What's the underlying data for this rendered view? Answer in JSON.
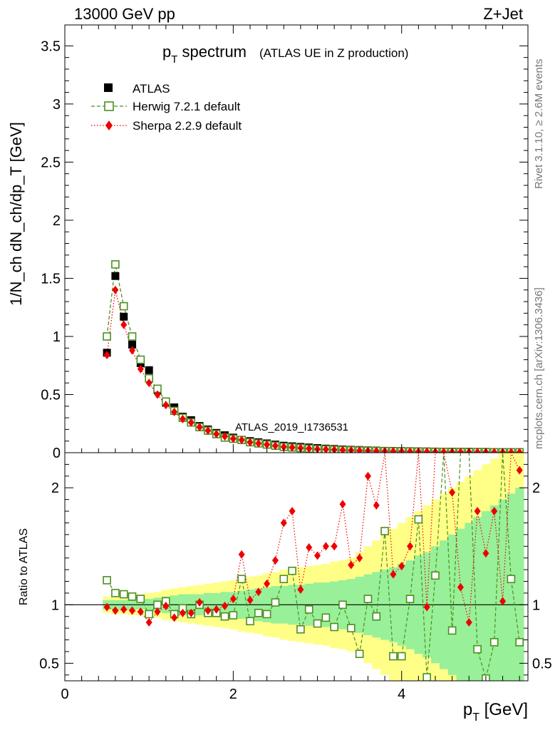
{
  "header": {
    "left": "13000 GeV pp",
    "right": "Z+Jet"
  },
  "side_labels": {
    "rivet": "Rivet 3.1.10, ≥ 2.6M events",
    "mcplots": "mcplots.cern.ch [arXiv:1306.3436]"
  },
  "colors": {
    "atlas": "#000000",
    "herwig": "#4c8f1f",
    "sherpa": "#ee0000",
    "band_inner": "#98f098",
    "band_outer": "#ffff88"
  },
  "chart_data": [
    {
      "type": "scatter",
      "title_main": "p",
      "title_sub": "T",
      "title_rest": " spectrum",
      "title_note": "(ATLAS UE in Z production)",
      "ylabel": "1/N_ch dN_ch/dp_T [GeV]",
      "watermark": "ATLAS_2019_I1736531",
      "ylim": [
        0,
        3.68
      ],
      "yticks": [
        "0",
        "0.5",
        "1",
        "1.5",
        "2",
        "2.5",
        "3",
        "3.5"
      ],
      "ytick_values": [
        0,
        0.5,
        1,
        1.5,
        2,
        2.5,
        3,
        3.5
      ],
      "x": [
        0.5,
        0.6,
        0.7,
        0.8,
        0.9,
        1.0,
        1.1,
        1.2,
        1.3,
        1.4,
        1.5,
        1.6,
        1.7,
        1.8,
        1.9,
        2.0,
        2.1,
        2.2,
        2.3,
        2.4,
        2.5,
        2.6,
        2.7,
        2.8,
        2.9,
        3.0,
        3.1,
        3.2,
        3.3,
        3.4,
        3.5,
        3.6,
        3.7,
        3.8,
        3.9,
        4.0,
        4.1,
        4.2,
        4.3,
        4.4,
        4.5,
        4.6,
        4.7,
        4.8,
        4.9,
        5.0,
        5.1,
        5.2,
        5.3,
        5.4
      ],
      "series": [
        {
          "name": "ATLAS",
          "marker": "square-filled",
          "values": [
            0.86,
            1.52,
            1.17,
            0.93,
            0.77,
            0.71,
            0.54,
            0.43,
            0.39,
            0.31,
            0.28,
            0.23,
            0.2,
            0.17,
            0.15,
            0.13,
            0.11,
            0.1,
            0.09,
            0.08,
            0.07,
            0.06,
            0.055,
            0.05,
            0.045,
            0.04,
            0.035,
            0.032,
            0.028,
            0.025,
            0.023,
            0.02,
            0.018,
            0.016,
            0.015,
            0.014,
            0.013,
            0.012,
            0.011,
            0.01,
            0.009,
            0.009,
            0.008,
            0.008,
            0.007,
            0.007,
            0.006,
            0.006,
            0.006,
            0.005
          ]
        },
        {
          "name": "Herwig 7.2.1 default",
          "marker": "square-open",
          "line": "dashed",
          "values": [
            1.0,
            1.62,
            1.26,
            1.0,
            0.8,
            0.64,
            0.55,
            0.44,
            0.36,
            0.3,
            0.26,
            0.22,
            0.19,
            0.16,
            0.13,
            0.12,
            0.11,
            0.09,
            0.08,
            0.07,
            0.06,
            0.05,
            0.045,
            0.04,
            0.035,
            0.03,
            0.028,
            0.025,
            0.022,
            0.02,
            0.018,
            0.016,
            0.014,
            0.013,
            0.012,
            0.011,
            0.01,
            0.009,
            0.008,
            0.007,
            0.007,
            0.006,
            0.006,
            0.005,
            0.005,
            0.005,
            0.004,
            0.004,
            0.004,
            0.004
          ]
        },
        {
          "name": "Sherpa 2.2.9 default",
          "marker": "diamond-filled",
          "line": "dotted",
          "values": [
            0.84,
            1.4,
            1.1,
            0.88,
            0.72,
            0.6,
            0.5,
            0.41,
            0.35,
            0.29,
            0.26,
            0.22,
            0.19,
            0.16,
            0.14,
            0.12,
            0.11,
            0.09,
            0.08,
            0.07,
            0.06,
            0.05,
            0.045,
            0.04,
            0.035,
            0.03,
            0.028,
            0.025,
            0.022,
            0.02,
            0.018,
            0.016,
            0.014,
            0.013,
            0.012,
            0.011,
            0.01,
            0.009,
            0.008,
            0.007,
            0.007,
            0.006,
            0.006,
            0.005,
            0.005,
            0.005,
            0.004,
            0.004,
            0.004,
            0.004
          ]
        }
      ],
      "legend_position": "top-left"
    },
    {
      "type": "scatter",
      "ylabel": "Ratio to ATLAS",
      "xlabel_main": "p",
      "xlabel_sub": "T",
      "xlabel_rest": " [GeV]",
      "xlim": [
        0,
        5.5
      ],
      "xticks": [
        "0",
        "2",
        "4"
      ],
      "xtick_values": [
        0,
        2,
        4
      ],
      "ylim": [
        0.35,
        2.3
      ],
      "yticks_left": [
        "0.5",
        "1",
        "2"
      ],
      "yticks_right": [
        "0.5",
        "1",
        "2"
      ],
      "ytick_values": [
        0.5,
        1,
        2
      ],
      "x": [
        0.5,
        0.6,
        0.7,
        0.8,
        0.9,
        1.0,
        1.1,
        1.2,
        1.3,
        1.4,
        1.5,
        1.6,
        1.7,
        1.8,
        1.9,
        2.0,
        2.1,
        2.2,
        2.3,
        2.4,
        2.5,
        2.6,
        2.7,
        2.8,
        2.9,
        3.0,
        3.1,
        3.2,
        3.3,
        3.4,
        3.5,
        3.6,
        3.7,
        3.8,
        3.9,
        4.0,
        4.1,
        4.2,
        4.3,
        4.4,
        4.5,
        4.6,
        4.7,
        4.8,
        4.9,
        5.0,
        5.1,
        5.2,
        5.3,
        5.4
      ],
      "band_inner_halfwidth": [
        0.04,
        0.04,
        0.04,
        0.04,
        0.04,
        0.05,
        0.06,
        0.07,
        0.08,
        0.09,
        0.09,
        0.09,
        0.1,
        0.1,
        0.11,
        0.11,
        0.12,
        0.13,
        0.14,
        0.15,
        0.16,
        0.16,
        0.17,
        0.17,
        0.18,
        0.19,
        0.19,
        0.2,
        0.21,
        0.22,
        0.24,
        0.26,
        0.28,
        0.3,
        0.32,
        0.35,
        0.38,
        0.42,
        0.45,
        0.5,
        0.55,
        0.6,
        0.65,
        0.7,
        0.75,
        0.8,
        0.85,
        0.9,
        0.95,
        1.0
      ],
      "band_outer_halfwidth": [
        0.07,
        0.08,
        0.08,
        0.09,
        0.09,
        0.1,
        0.11,
        0.13,
        0.14,
        0.15,
        0.16,
        0.17,
        0.18,
        0.19,
        0.2,
        0.21,
        0.23,
        0.24,
        0.25,
        0.27,
        0.28,
        0.3,
        0.31,
        0.32,
        0.33,
        0.34,
        0.35,
        0.37,
        0.38,
        0.4,
        0.45,
        0.5,
        0.55,
        0.6,
        0.65,
        0.7,
        0.75,
        0.8,
        0.85,
        0.9,
        0.95,
        1.0,
        1.05,
        1.1,
        1.15,
        1.2,
        1.25,
        1.3,
        1.35,
        1.4
      ],
      "series": [
        {
          "name": "Herwig 7.2.1 default",
          "values": [
            1.21,
            1.1,
            1.09,
            1.07,
            1.05,
            0.92,
            1.0,
            1.03,
            0.92,
            0.97,
            0.92,
            1.0,
            0.93,
            0.93,
            0.9,
            0.91,
            1.22,
            0.86,
            0.93,
            0.92,
            1.02,
            1.22,
            1.29,
            0.79,
            0.96,
            0.84,
            0.89,
            0.81,
            1.0,
            0.8,
            0.58,
            1.05,
            0.9,
            1.63,
            0.56,
            0.56,
            1.05,
            1.73,
            0.38,
            1.25,
            2.3,
            0.78,
            2.3,
            2.3,
            0.62,
            0.37,
            0.68,
            2.3,
            1.22,
            0.68
          ]
        },
        {
          "name": "Sherpa 2.2.9 default",
          "values": [
            0.98,
            0.95,
            0.96,
            0.95,
            0.94,
            0.85,
            0.94,
            0.99,
            0.89,
            0.93,
            0.93,
            1.02,
            0.95,
            0.96,
            0.99,
            1.05,
            1.43,
            1.04,
            1.11,
            1.18,
            1.38,
            1.7,
            1.8,
            1.13,
            1.49,
            1.42,
            1.5,
            1.5,
            1.86,
            1.34,
            1.4,
            2.1,
            1.85,
            2.3,
            1.26,
            1.33,
            1.5,
            2.3,
            0.98,
            2.3,
            2.3,
            1.96,
            1.15,
            0.85,
            1.8,
            1.44,
            1.8,
            1.03,
            2.3,
            2.15
          ]
        }
      ]
    }
  ]
}
